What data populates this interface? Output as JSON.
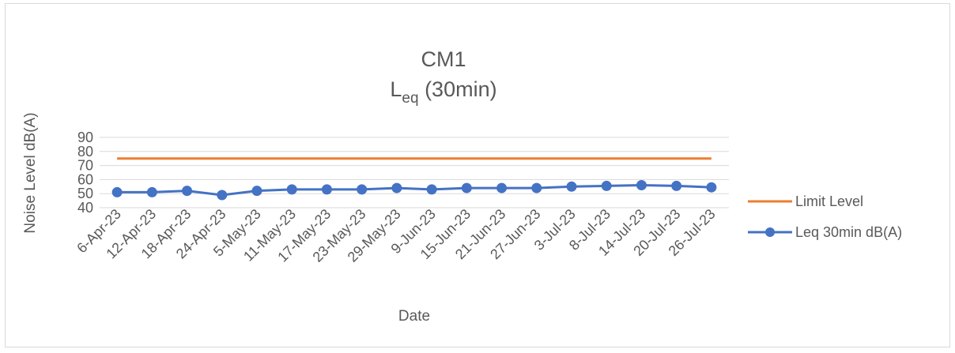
{
  "chart_data": {
    "type": "line",
    "title": "CM1",
    "subtitle": {
      "main": "L",
      "sub": "eq",
      "rest": " (30min)"
    },
    "xlabel": "Date",
    "ylabel": "Noise Level dB(A)",
    "ylim": [
      40,
      90
    ],
    "yticks": [
      "40",
      "50",
      "60",
      "70",
      "80",
      "90"
    ],
    "grid": true,
    "legend_position": "right",
    "categories": [
      "6-Apr-23",
      "12-Apr-23",
      "18-Apr-23",
      "24-Apr-23",
      "5-May-23",
      "11-May-23",
      "17-May-23",
      "23-May-23",
      "29-May-23",
      "9-Jun-23",
      "15-Jun-23",
      "21-Jun-23",
      "27-Jun-23",
      "3-Jul-23",
      "8-Jul-23",
      "14-Jul-23",
      "20-Jul-23",
      "26-Jul-23"
    ],
    "series": [
      {
        "name": "Limit Level",
        "color": "#ED7D31",
        "marker": "none",
        "values": [
          75,
          75,
          75,
          75,
          75,
          75,
          75,
          75,
          75,
          75,
          75,
          75,
          75,
          75,
          75,
          75,
          75,
          75
        ]
      },
      {
        "name": "Leq 30min dB(A)",
        "color": "#4472C4",
        "marker": "circle",
        "values": [
          51,
          51,
          52,
          49,
          52,
          53,
          53,
          53,
          54,
          53,
          54,
          54,
          54,
          55,
          55.5,
          56,
          55.5,
          54.5
        ]
      }
    ]
  }
}
